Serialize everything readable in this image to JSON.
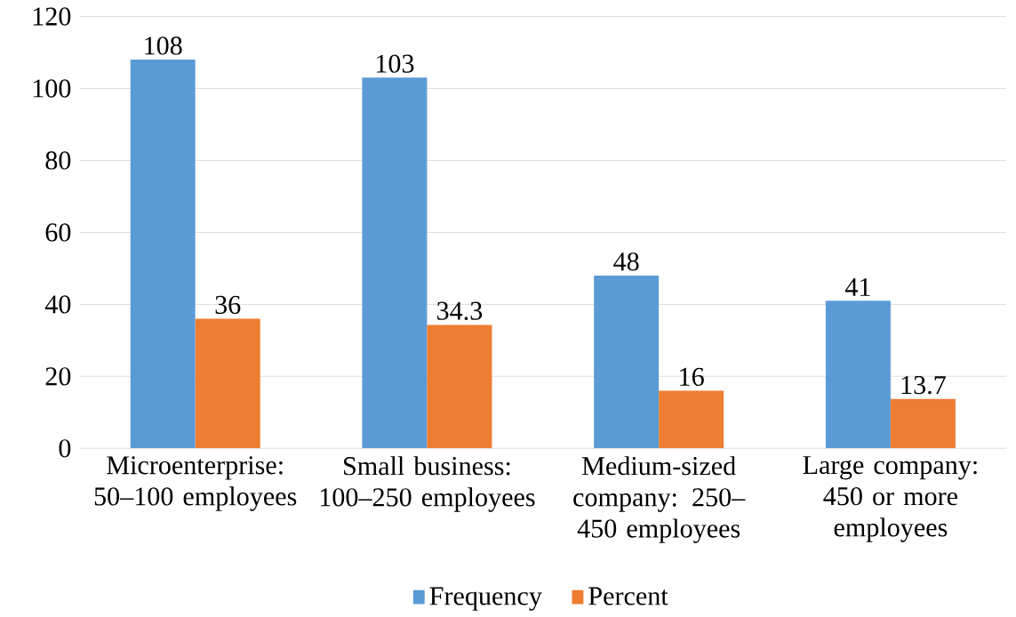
{
  "chart_data": {
    "type": "bar",
    "categories": [
      "Microenterprise: 50–100 employees",
      "Small business: 100–250 employees",
      "Medium-sized company: 250–450 employees",
      "Large company: 450 or more employees"
    ],
    "series": [
      {
        "name": "Frequency",
        "color": "#5b9bd5",
        "values": [
          108,
          103,
          48,
          41
        ]
      },
      {
        "name": "Percent",
        "color": "#ed7d31",
        "values": [
          36,
          34.3,
          16,
          13.7
        ]
      }
    ],
    "ylim": [
      0,
      120
    ],
    "yticks": [
      0,
      20,
      40,
      60,
      80,
      100,
      120
    ],
    "grid": "y",
    "legend": "bottom",
    "data_labels": true
  }
}
